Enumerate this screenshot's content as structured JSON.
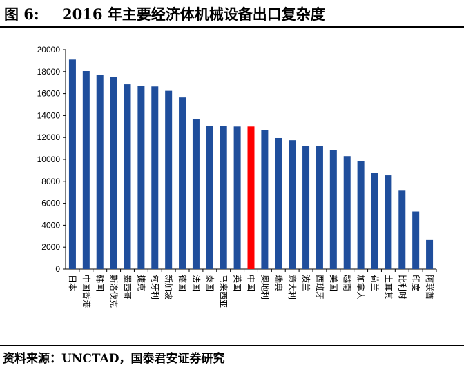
{
  "figure": {
    "label": "图 6:",
    "title": "2016 年主要经济体机械设备出口复杂度",
    "source": "资料来源：UNCTAD，国泰君安证券研究"
  },
  "colors": {
    "bar": "#1F4E9C",
    "highlight": "#FF0000",
    "axis": "#000000"
  },
  "chart_data": {
    "type": "bar",
    "title": "",
    "xlabel": "",
    "ylabel": "",
    "ylim": [
      0,
      20000
    ],
    "yticks": [
      0,
      2000,
      4000,
      6000,
      8000,
      10000,
      12000,
      14000,
      16000,
      18000,
      20000
    ],
    "grid": false,
    "legend": "none",
    "highlight_category": "中国",
    "categories": [
      "日本",
      "中国香港",
      "韩国",
      "斯洛伐克",
      "墨西哥",
      "捷克",
      "匈牙利",
      "新加坡",
      "德国",
      "法国",
      "泰国",
      "马来西亚",
      "英国",
      "中国",
      "奥地利",
      "瑞典",
      "意大利",
      "波兰",
      "西班牙",
      "美国",
      "越南",
      "加拿大",
      "荷兰",
      "土耳其",
      "比利时",
      "印度",
      "阿联酋"
    ],
    "values": [
      19100,
      18050,
      17700,
      17500,
      16850,
      16700,
      16650,
      16250,
      15650,
      13700,
      13050,
      13050,
      13000,
      13000,
      12700,
      11950,
      11750,
      11250,
      11250,
      10850,
      10300,
      9850,
      8750,
      8550,
      7150,
      5250,
      2650
    ]
  }
}
